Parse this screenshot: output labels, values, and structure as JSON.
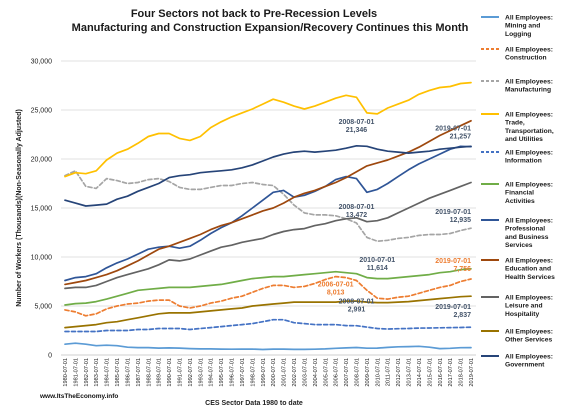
{
  "chart_data": {
    "type": "line",
    "title": "Four Sectors not back to Pre-Recession Levels",
    "subtitle": "Manufacturing and Construction Expansion/Recovery Continues this Month",
    "ylabel": "Number of Workers (Thousands)(Non-Seasonally Adjusted)",
    "xlabel": "CES Sector Data 1980 to date",
    "source": "www.ItsTheEconomy.info",
    "ylim": [
      0,
      30000
    ],
    "yticks": [
      0,
      5000,
      10000,
      15000,
      20000,
      25000,
      30000
    ],
    "ytick_labels": [
      "0",
      "5,000",
      "10,000",
      "15,000",
      "20,000",
      "25,000",
      "30,000"
    ],
    "grid": "horizontal",
    "legend_position": "right",
    "x": [
      "1980-07-01",
      "1981-07-01",
      "1982-07-01",
      "1983-07-01",
      "1984-07-01",
      "1985-07-01",
      "1986-07-01",
      "1987-07-01",
      "1988-07-01",
      "1989-07-01",
      "1990-07-01",
      "1991-07-01",
      "1992-07-01",
      "1993-07-01",
      "1994-07-01",
      "1995-07-01",
      "1996-07-01",
      "1997-07-01",
      "1998-07-01",
      "1999-07-01",
      "2000-07-01",
      "2001-07-01",
      "2002-07-01",
      "2003-07-01",
      "2004-07-01",
      "2005-07-01",
      "2006-07-01",
      "2007-07-01",
      "2008-07-01",
      "2009-07-01",
      "2010-07-01",
      "2011-07-01",
      "2012-07-01",
      "2013-07-01",
      "2014-07-01",
      "2015-07-01",
      "2016-07-01",
      "2017-07-01",
      "2018-07-01",
      "2019-07-01"
    ],
    "series": [
      {
        "name": "All Employees: Mining and Logging",
        "color": "#5b9bd5",
        "dash": "solid",
        "values": [
          1100,
          1200,
          1100,
          950,
          1000,
          950,
          800,
          750,
          750,
          700,
          720,
          700,
          650,
          620,
          620,
          600,
          590,
          600,
          600,
          560,
          600,
          600,
          570,
          570,
          590,
          620,
          680,
          720,
          770,
          690,
          700,
          780,
          840,
          860,
          890,
          800,
          650,
          680,
          740,
          750
        ]
      },
      {
        "name": "All Employees: Construction",
        "color": "#ed7d31",
        "dash": "dash",
        "values": [
          4600,
          4400,
          4000,
          4200,
          4700,
          5000,
          5200,
          5300,
          5500,
          5600,
          5600,
          5000,
          4800,
          5000,
          5300,
          5500,
          5800,
          6000,
          6400,
          6800,
          7100,
          7100,
          6900,
          7000,
          7300,
          7700,
          8000,
          7900,
          7600,
          6600,
          5800,
          5700,
          5900,
          6000,
          6300,
          6600,
          6900,
          7100,
          7500,
          7756
        ]
      },
      {
        "name": "All Employees: Manufacturing",
        "color": "#a5a5a5",
        "dash": "dash",
        "values": [
          18300,
          18800,
          17200,
          17000,
          18000,
          17800,
          17500,
          17600,
          17900,
          18000,
          17700,
          17100,
          16900,
          16900,
          17100,
          17300,
          17300,
          17500,
          17600,
          17400,
          17300,
          16400,
          15300,
          14500,
          14300,
          14300,
          14200,
          13900,
          13472,
          12000,
          11614,
          11700,
          11900,
          12000,
          12200,
          12300,
          12300,
          12400,
          12700,
          12935
        ]
      },
      {
        "name": "All Employees: Trade, Transportation, and Utilities",
        "color": "#ffc000",
        "dash": "solid",
        "values": [
          18200,
          18600,
          18500,
          18800,
          19900,
          20600,
          21000,
          21600,
          22300,
          22600,
          22600,
          22100,
          21900,
          22300,
          23200,
          23800,
          24300,
          24700,
          25100,
          25600,
          26100,
          25800,
          25400,
          25100,
          25400,
          25800,
          26200,
          26500,
          26300,
          24700,
          24600,
          25200,
          25600,
          26000,
          26600,
          27000,
          27300,
          27400,
          27700,
          27800
        ]
      },
      {
        "name": "All Employees: Information",
        "color": "#4472c4",
        "dash": "dash",
        "values": [
          2400,
          2400,
          2400,
          2400,
          2500,
          2500,
          2500,
          2600,
          2600,
          2700,
          2700,
          2700,
          2600,
          2700,
          2800,
          2900,
          3000,
          3100,
          3200,
          3400,
          3600,
          3600,
          3300,
          3200,
          3100,
          3100,
          3100,
          3000,
          2991,
          2850,
          2700,
          2650,
          2680,
          2700,
          2750,
          2760,
          2780,
          2800,
          2810,
          2837
        ]
      },
      {
        "name": "All Employees: Financial Activities",
        "color": "#70ad47",
        "dash": "solid",
        "values": [
          5100,
          5250,
          5300,
          5450,
          5700,
          6000,
          6300,
          6600,
          6700,
          6800,
          6900,
          6900,
          6900,
          7000,
          7100,
          7200,
          7400,
          7600,
          7800,
          7900,
          8000,
          8000,
          8100,
          8200,
          8300,
          8400,
          8500,
          8400,
          8300,
          7900,
          7800,
          7800,
          7900,
          8000,
          8100,
          8200,
          8400,
          8500,
          8700,
          8800
        ]
      },
      {
        "name": "All Employees: Professional and Business Services",
        "color": "#2f5597",
        "dash": "solid",
        "values": [
          7600,
          7900,
          8000,
          8300,
          8900,
          9400,
          9800,
          10300,
          10800,
          11000,
          11100,
          10900,
          11100,
          11700,
          12400,
          13000,
          13500,
          14200,
          15000,
          15800,
          16600,
          16800,
          16100,
          16300,
          16700,
          17200,
          17900,
          18200,
          18000,
          16600,
          16900,
          17500,
          18200,
          18900,
          19500,
          20000,
          20500,
          21000,
          21300,
          21257
        ]
      },
      {
        "name": "All Employees: Education and Health Services",
        "color": "#9e480e",
        "dash": "solid",
        "values": [
          7200,
          7400,
          7600,
          7900,
          8200,
          8600,
          9100,
          9600,
          10200,
          10800,
          11100,
          11500,
          11900,
          12300,
          12800,
          13200,
          13500,
          13900,
          14300,
          14700,
          15000,
          15500,
          16100,
          16500,
          16800,
          17200,
          17600,
          18100,
          18700,
          19300,
          19600,
          19900,
          20300,
          20700,
          21200,
          21800,
          22400,
          22900,
          23400,
          23900
        ]
      },
      {
        "name": "All Employees: Leisure and Hospitality",
        "color": "#636363",
        "dash": "solid",
        "values": [
          6800,
          6900,
          6900,
          7100,
          7500,
          7900,
          8200,
          8500,
          8800,
          9200,
          9700,
          9600,
          9800,
          10200,
          10600,
          11000,
          11200,
          11500,
          11700,
          11900,
          12300,
          12600,
          12800,
          12900,
          13200,
          13400,
          13700,
          13900,
          14000,
          13600,
          13700,
          14000,
          14500,
          15000,
          15500,
          16000,
          16400,
          16800,
          17200,
          17600
        ]
      },
      {
        "name": "All Employees: Other Services",
        "color": "#997300",
        "dash": "solid",
        "values": [
          2800,
          2900,
          3000,
          3100,
          3300,
          3400,
          3600,
          3800,
          4000,
          4200,
          4300,
          4300,
          4300,
          4400,
          4500,
          4600,
          4700,
          4800,
          5000,
          5100,
          5200,
          5300,
          5400,
          5400,
          5400,
          5400,
          5400,
          5500,
          5500,
          5400,
          5350,
          5350,
          5400,
          5450,
          5550,
          5650,
          5750,
          5850,
          5950,
          6000
        ]
      },
      {
        "name": "All Employees: Government",
        "color": "#264478",
        "dash": "solid",
        "values": [
          15800,
          15500,
          15200,
          15300,
          15400,
          15900,
          16200,
          16700,
          17100,
          17500,
          18100,
          18300,
          18400,
          18600,
          18700,
          18800,
          18900,
          19100,
          19400,
          19800,
          20200,
          20500,
          20700,
          20800,
          20700,
          20800,
          20900,
          21100,
          21346,
          21300,
          21000,
          20800,
          20700,
          20600,
          20700,
          20800,
          21000,
          21100,
          21200,
          21300
        ]
      }
    ],
    "annotations": [
      {
        "date": "2008-07-01",
        "value": "21,346",
        "series": "Government",
        "color": "#44546a"
      },
      {
        "date": "2019-07-01",
        "value": "21,257",
        "series": "Professional and Business Services",
        "color": "#44546a"
      },
      {
        "date": "2008-07-01",
        "value": "13,472",
        "series": "Manufacturing",
        "color": "#44546a"
      },
      {
        "date": "2019-07-01",
        "value": "12,935",
        "series": "Manufacturing",
        "color": "#44546a"
      },
      {
        "date": "2010-07-01",
        "value": "11,614",
        "series": "Manufacturing",
        "color": "#44546a"
      },
      {
        "date": "2006-07-01",
        "value": "8,013",
        "series": "Construction",
        "color": "#ed7d31"
      },
      {
        "date": "2019-07-01",
        "value": "7,756",
        "series": "Construction",
        "color": "#ed7d31"
      },
      {
        "date": "2008-07-01",
        "value": "2,991",
        "series": "Information",
        "color": "#44546a"
      },
      {
        "date": "2019-07-01",
        "value": "2,837",
        "series": "Information",
        "color": "#44546a"
      }
    ]
  }
}
